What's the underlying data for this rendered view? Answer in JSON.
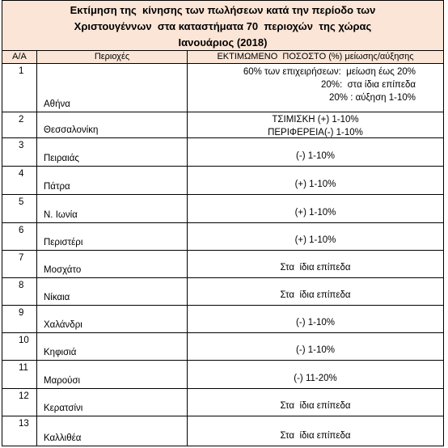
{
  "title": [
    "Εκτίμηση της  κίνησης των πωλήσεων κατά την περίοδο των",
    "Χριστουγέννων  στα καταστήματα 70  περιοχών  της χώρας",
    "Ιανουάριος (2018)"
  ],
  "table": {
    "headers": [
      "Α/Α",
      "Περιοχές",
      "ΕΚΤΙΜΩΜΕΝΟ  ΠΟΣΟΣΤΟ (%) μείωσης/αύξησης"
    ],
    "rows": [
      [
        "1",
        "Αθήνα",
        [
          "60% των επιχειρήσεων:  μείωση έως 20%",
          "20%:  στα ίδια επίπεδα",
          "20% : αύξηση 1-10%"
        ]
      ],
      [
        "2",
        "Θεσσαλονίκη",
        [
          "ΤΣΙΜΙΣΚΗ (+) 1-10%",
          "ΠΕΡΙΦΕΡΕΙΑ(-) 1-10%"
        ]
      ],
      [
        "3",
        "Πειραιάς",
        [
          "(-) 1-10%"
        ]
      ],
      [
        "4",
        "Πάτρα",
        [
          "(+) 1-10%"
        ]
      ],
      [
        "5",
        "Ν. Ιωνία",
        [
          "(+) 1-10%"
        ]
      ],
      [
        "6",
        "Περιστέρι",
        [
          "(+) 1-10%"
        ]
      ],
      [
        "7",
        "Μοσχάτο",
        [
          "Στα  ίδια επίπεδα"
        ]
      ],
      [
        "8",
        "Νίκαια",
        [
          "Στα  ίδια επίπεδα"
        ]
      ],
      [
        "9",
        "Χαλάνδρι",
        [
          "(-) 1-10%"
        ]
      ],
      [
        "10",
        "Κηφισιά",
        [
          "(-) 1-10%"
        ]
      ],
      [
        "11",
        "Μαρούσι",
        [
          "(-) 11-20%"
        ]
      ],
      [
        "12",
        "Κερατσίνι",
        [
          "Στα  ίδια επίπεδα"
        ]
      ],
      [
        "13",
        "Καλλιθέα",
        [
          "Στα  ίδια επίπεδα"
        ]
      ]
    ]
  }
}
